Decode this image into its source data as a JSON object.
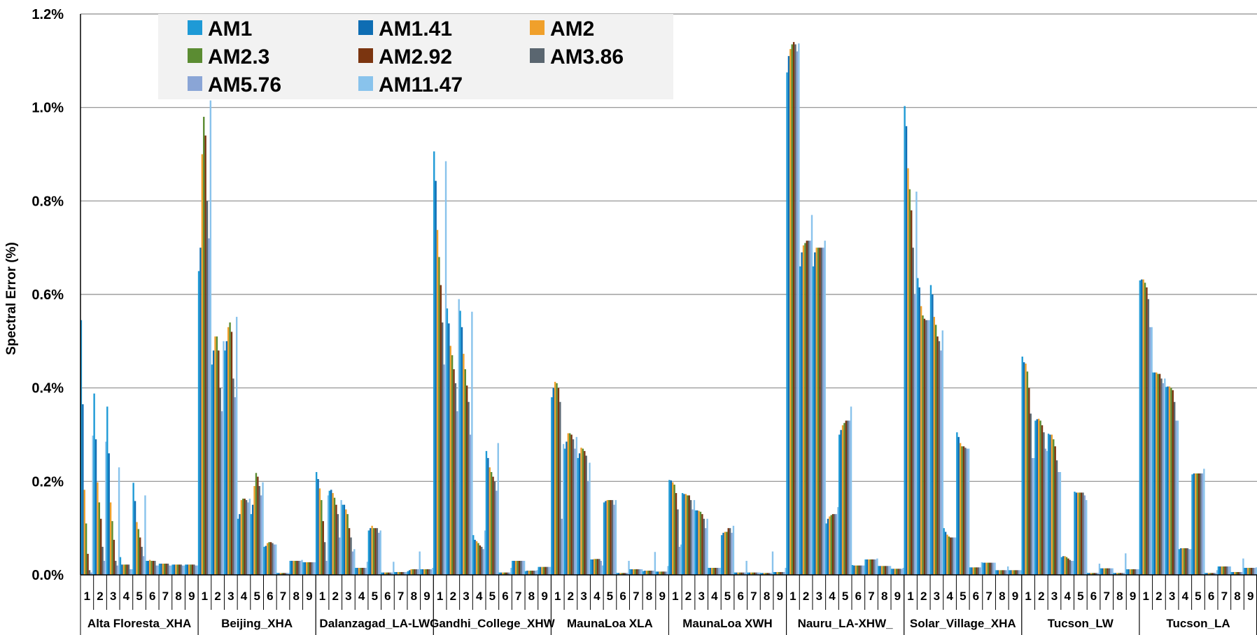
{
  "chart_data": {
    "type": "bar",
    "ylabel": "Spectral Error (%)",
    "ylim": [
      0,
      1.2
    ],
    "yticks": [
      0,
      0.2,
      0.4,
      0.6,
      0.8,
      1.0,
      1.2
    ],
    "ytick_labels": [
      "0.0%",
      "0.2%",
      "0.4%",
      "0.6%",
      "0.8%",
      "1.0%",
      "1.2%"
    ],
    "grid": true,
    "legend": "top-left-inside",
    "groups": [
      "Alta Floresta_XHA",
      "Beijing_XHA",
      "Dalanzagad_LA-LW",
      "Gandhi_College_XHW",
      "MaunaLoa XLA",
      "MaunaLoa XWH",
      "Nauru_LA-XHW_",
      "Solar_Village_XHA",
      "Tucson_LW",
      "Tucson_LA"
    ],
    "categories": [
      "1",
      "2",
      "3",
      "4",
      "5",
      "6",
      "7",
      "8",
      "9"
    ],
    "series": [
      {
        "name": "AM1",
        "color": "#1e9ad6",
        "values": [
          [
            0.545,
            0.388,
            0.36,
            0.038,
            0.197,
            0.03,
            0.024,
            0.022,
            0.022
          ],
          [
            0.65,
            0.45,
            0.48,
            0.12,
            0.13,
            0.06,
            0.004,
            0.03,
            0.027
          ],
          [
            0.22,
            0.18,
            0.15,
            0.015,
            0.095,
            0.005,
            0.006,
            0.008,
            0.012
          ],
          [
            0.906,
            0.57,
            0.565,
            0.085,
            0.265,
            0.005,
            0.03,
            0.008,
            0.017
          ],
          [
            0.38,
            0.27,
            0.25,
            0.033,
            0.155,
            0.004,
            0.012,
            0.008,
            0.007
          ],
          [
            0.203,
            0.175,
            0.138,
            0.015,
            0.085,
            0.005,
            0.005,
            0.004,
            0.006
          ],
          [
            1.075,
            0.66,
            0.66,
            0.11,
            0.3,
            0.021,
            0.033,
            0.019,
            0.013
          ],
          [
            1.003,
            0.635,
            0.62,
            0.1,
            0.305,
            0.016,
            0.026,
            0.01,
            0.01
          ],
          [
            0.467,
            0.33,
            0.302,
            0.038,
            0.178,
            0.004,
            0.014,
            0.004,
            0.012
          ],
          [
            0.63,
            0.433,
            0.402,
            0.055,
            0.215,
            0.004,
            0.018,
            0.006,
            0.015
          ]
        ]
      },
      {
        "name": "AM1.41",
        "color": "#0e6db3",
        "values": [
          [
            0.365,
            0.29,
            0.26,
            0.022,
            0.158,
            0.03,
            0.024,
            0.022,
            0.022
          ],
          [
            0.7,
            0.48,
            0.5,
            0.13,
            0.15,
            0.062,
            0.004,
            0.03,
            0.027
          ],
          [
            0.205,
            0.182,
            0.15,
            0.015,
            0.1,
            0.005,
            0.006,
            0.01,
            0.012
          ],
          [
            0.843,
            0.538,
            0.53,
            0.075,
            0.25,
            0.005,
            0.03,
            0.009,
            0.017
          ],
          [
            0.4,
            0.285,
            0.26,
            0.033,
            0.158,
            0.004,
            0.012,
            0.009,
            0.007
          ],
          [
            0.202,
            0.173,
            0.138,
            0.015,
            0.09,
            0.005,
            0.005,
            0.004,
            0.006
          ],
          [
            1.11,
            0.69,
            0.69,
            0.12,
            0.31,
            0.02,
            0.033,
            0.019,
            0.013
          ],
          [
            0.96,
            0.615,
            0.6,
            0.092,
            0.295,
            0.016,
            0.026,
            0.01,
            0.01
          ],
          [
            0.455,
            0.333,
            0.3,
            0.04,
            0.176,
            0.004,
            0.014,
            0.004,
            0.012
          ],
          [
            0.632,
            0.433,
            0.403,
            0.057,
            0.217,
            0.004,
            0.018,
            0.006,
            0.015
          ]
        ]
      },
      {
        "name": "AM2",
        "color": "#f0a02b",
        "values": [
          [
            0.182,
            0.198,
            0.155,
            0.022,
            0.113,
            0.032,
            0.024,
            0.022,
            0.022
          ],
          [
            0.9,
            0.51,
            0.53,
            0.16,
            0.19,
            0.068,
            0.004,
            0.03,
            0.027
          ],
          [
            0.185,
            0.175,
            0.14,
            0.015,
            0.105,
            0.005,
            0.006,
            0.012,
            0.012
          ],
          [
            0.738,
            0.49,
            0.473,
            0.072,
            0.23,
            0.005,
            0.03,
            0.009,
            0.017
          ],
          [
            0.413,
            0.303,
            0.272,
            0.034,
            0.16,
            0.004,
            0.012,
            0.009,
            0.007
          ],
          [
            0.198,
            0.173,
            0.137,
            0.015,
            0.092,
            0.005,
            0.005,
            0.004,
            0.006
          ],
          [
            1.125,
            0.705,
            0.7,
            0.125,
            0.32,
            0.02,
            0.033,
            0.019,
            0.013
          ],
          [
            0.87,
            0.575,
            0.552,
            0.086,
            0.282,
            0.016,
            0.026,
            0.01,
            0.01
          ],
          [
            0.452,
            0.334,
            0.3,
            0.04,
            0.176,
            0.004,
            0.014,
            0.004,
            0.012
          ],
          [
            0.632,
            0.433,
            0.403,
            0.057,
            0.217,
            0.004,
            0.018,
            0.006,
            0.015
          ]
        ]
      },
      {
        "name": "AM2.3",
        "color": "#5b8c32",
        "values": [
          [
            0.11,
            0.155,
            0.115,
            0.022,
            0.098,
            0.03,
            0.024,
            0.022,
            0.022
          ],
          [
            0.98,
            0.51,
            0.54,
            0.163,
            0.218,
            0.07,
            0.004,
            0.03,
            0.027
          ],
          [
            0.16,
            0.165,
            0.13,
            0.015,
            0.1,
            0.005,
            0.006,
            0.012,
            0.012
          ],
          [
            0.68,
            0.47,
            0.44,
            0.068,
            0.22,
            0.005,
            0.03,
            0.009,
            0.017
          ],
          [
            0.41,
            0.303,
            0.27,
            0.034,
            0.16,
            0.004,
            0.012,
            0.009,
            0.007
          ],
          [
            0.193,
            0.17,
            0.135,
            0.015,
            0.092,
            0.005,
            0.005,
            0.004,
            0.006
          ],
          [
            1.135,
            0.71,
            0.7,
            0.128,
            0.325,
            0.02,
            0.033,
            0.019,
            0.013
          ],
          [
            0.825,
            0.555,
            0.535,
            0.082,
            0.275,
            0.016,
            0.026,
            0.01,
            0.01
          ],
          [
            0.435,
            0.33,
            0.29,
            0.038,
            0.176,
            0.004,
            0.014,
            0.004,
            0.012
          ],
          [
            0.625,
            0.43,
            0.4,
            0.057,
            0.217,
            0.004,
            0.018,
            0.006,
            0.015
          ]
        ]
      },
      {
        "name": "AM2.92",
        "color": "#7b3510",
        "values": [
          [
            0.045,
            0.12,
            0.075,
            0.022,
            0.08,
            0.03,
            0.024,
            0.022,
            0.022
          ],
          [
            0.94,
            0.48,
            0.52,
            0.163,
            0.21,
            0.07,
            0.004,
            0.03,
            0.027
          ],
          [
            0.115,
            0.15,
            0.1,
            0.015,
            0.1,
            0.005,
            0.006,
            0.012,
            0.012
          ],
          [
            0.62,
            0.44,
            0.405,
            0.063,
            0.21,
            0.005,
            0.03,
            0.009,
            0.017
          ],
          [
            0.4,
            0.3,
            0.265,
            0.034,
            0.16,
            0.004,
            0.012,
            0.009,
            0.007
          ],
          [
            0.175,
            0.17,
            0.13,
            0.015,
            0.1,
            0.005,
            0.005,
            0.004,
            0.006
          ],
          [
            1.14,
            0.715,
            0.7,
            0.13,
            0.33,
            0.02,
            0.033,
            0.019,
            0.013
          ],
          [
            0.78,
            0.548,
            0.51,
            0.08,
            0.275,
            0.016,
            0.026,
            0.01,
            0.01
          ],
          [
            0.4,
            0.32,
            0.275,
            0.035,
            0.176,
            0.004,
            0.014,
            0.004,
            0.012
          ],
          [
            0.615,
            0.43,
            0.395,
            0.057,
            0.217,
            0.004,
            0.018,
            0.006,
            0.015
          ]
        ]
      },
      {
        "name": "AM3.86",
        "color": "#5a6670",
        "values": [
          [
            0.01,
            0.06,
            0.03,
            0.022,
            0.06,
            0.03,
            0.024,
            0.022,
            0.022
          ],
          [
            0.8,
            0.4,
            0.42,
            0.16,
            0.19,
            0.068,
            0.004,
            0.03,
            0.027
          ],
          [
            0.07,
            0.13,
            0.08,
            0.015,
            0.1,
            0.005,
            0.006,
            0.012,
            0.012
          ],
          [
            0.54,
            0.41,
            0.37,
            0.06,
            0.2,
            0.005,
            0.03,
            0.009,
            0.017
          ],
          [
            0.37,
            0.29,
            0.255,
            0.034,
            0.16,
            0.004,
            0.012,
            0.009,
            0.007
          ],
          [
            0.14,
            0.16,
            0.12,
            0.015,
            0.1,
            0.005,
            0.005,
            0.004,
            0.006
          ],
          [
            1.135,
            0.715,
            0.7,
            0.13,
            0.33,
            0.02,
            0.033,
            0.019,
            0.013
          ],
          [
            0.7,
            0.545,
            0.5,
            0.08,
            0.272,
            0.016,
            0.026,
            0.01,
            0.01
          ],
          [
            0.345,
            0.305,
            0.245,
            0.032,
            0.176,
            0.004,
            0.014,
            0.004,
            0.012
          ],
          [
            0.59,
            0.42,
            0.37,
            0.057,
            0.217,
            0.004,
            0.018,
            0.006,
            0.015
          ]
        ]
      },
      {
        "name": "AM5.76",
        "color": "#8aa5d6",
        "values": [
          [
            0.005,
            0.03,
            0.02,
            0.012,
            0.04,
            0.02,
            0.02,
            0.02,
            0.02
          ],
          [
            0.72,
            0.35,
            0.38,
            0.155,
            0.17,
            0.065,
            0.004,
            0.03,
            0.027
          ],
          [
            0.03,
            0.08,
            0.05,
            0.015,
            0.09,
            0.005,
            0.006,
            0.012,
            0.012
          ],
          [
            0.45,
            0.35,
            0.3,
            0.055,
            0.18,
            0.005,
            0.03,
            0.009,
            0.017
          ],
          [
            0.12,
            0.27,
            0.2,
            0.03,
            0.15,
            0.004,
            0.012,
            0.009,
            0.007
          ],
          [
            0.06,
            0.14,
            0.1,
            0.015,
            0.09,
            0.005,
            0.005,
            0.004,
            0.006
          ],
          [
            1.12,
            0.715,
            0.7,
            0.13,
            0.33,
            0.02,
            0.033,
            0.019,
            0.013
          ],
          [
            0.6,
            0.545,
            0.48,
            0.08,
            0.27,
            0.016,
            0.026,
            0.01,
            0.01
          ],
          [
            0.25,
            0.27,
            0.22,
            0.03,
            0.17,
            0.004,
            0.014,
            0.004,
            0.012
          ],
          [
            0.53,
            0.41,
            0.33,
            0.055,
            0.217,
            0.004,
            0.018,
            0.006,
            0.015
          ]
        ]
      },
      {
        "name": "AM11.47",
        "color": "#89c3ec",
        "values": [
          [
            0.298,
            0.285,
            0.23,
            0.012,
            0.17,
            0.02,
            0.02,
            0.02,
            0.02
          ],
          [
            1.015,
            0.5,
            0.552,
            0.163,
            0.198,
            0.065,
            0.004,
            0.032,
            0.027
          ],
          [
            0.17,
            0.16,
            0.055,
            0.028,
            0.095,
            0.028,
            0.006,
            0.05,
            0.015
          ],
          [
            0.885,
            0.59,
            0.563,
            0.095,
            0.282,
            0.015,
            0.03,
            0.01,
            0.017
          ],
          [
            0.28,
            0.295,
            0.24,
            0.02,
            0.16,
            0.03,
            0.012,
            0.049,
            0.019
          ],
          [
            0.065,
            0.16,
            0.12,
            0.015,
            0.105,
            0.03,
            0.005,
            0.05,
            0.015
          ],
          [
            1.137,
            0.77,
            0.715,
            0.145,
            0.36,
            0.02,
            0.035,
            0.019,
            0.015
          ],
          [
            0.82,
            0.545,
            0.523,
            0.08,
            0.27,
            0.027,
            0.026,
            0.018,
            0.01
          ],
          [
            0.25,
            0.265,
            0.22,
            0.03,
            0.16,
            0.024,
            0.014,
            0.046,
            0.012
          ],
          [
            0.53,
            0.42,
            0.33,
            0.055,
            0.227,
            0.01,
            0.018,
            0.035,
            0.016
          ]
        ]
      }
    ]
  }
}
